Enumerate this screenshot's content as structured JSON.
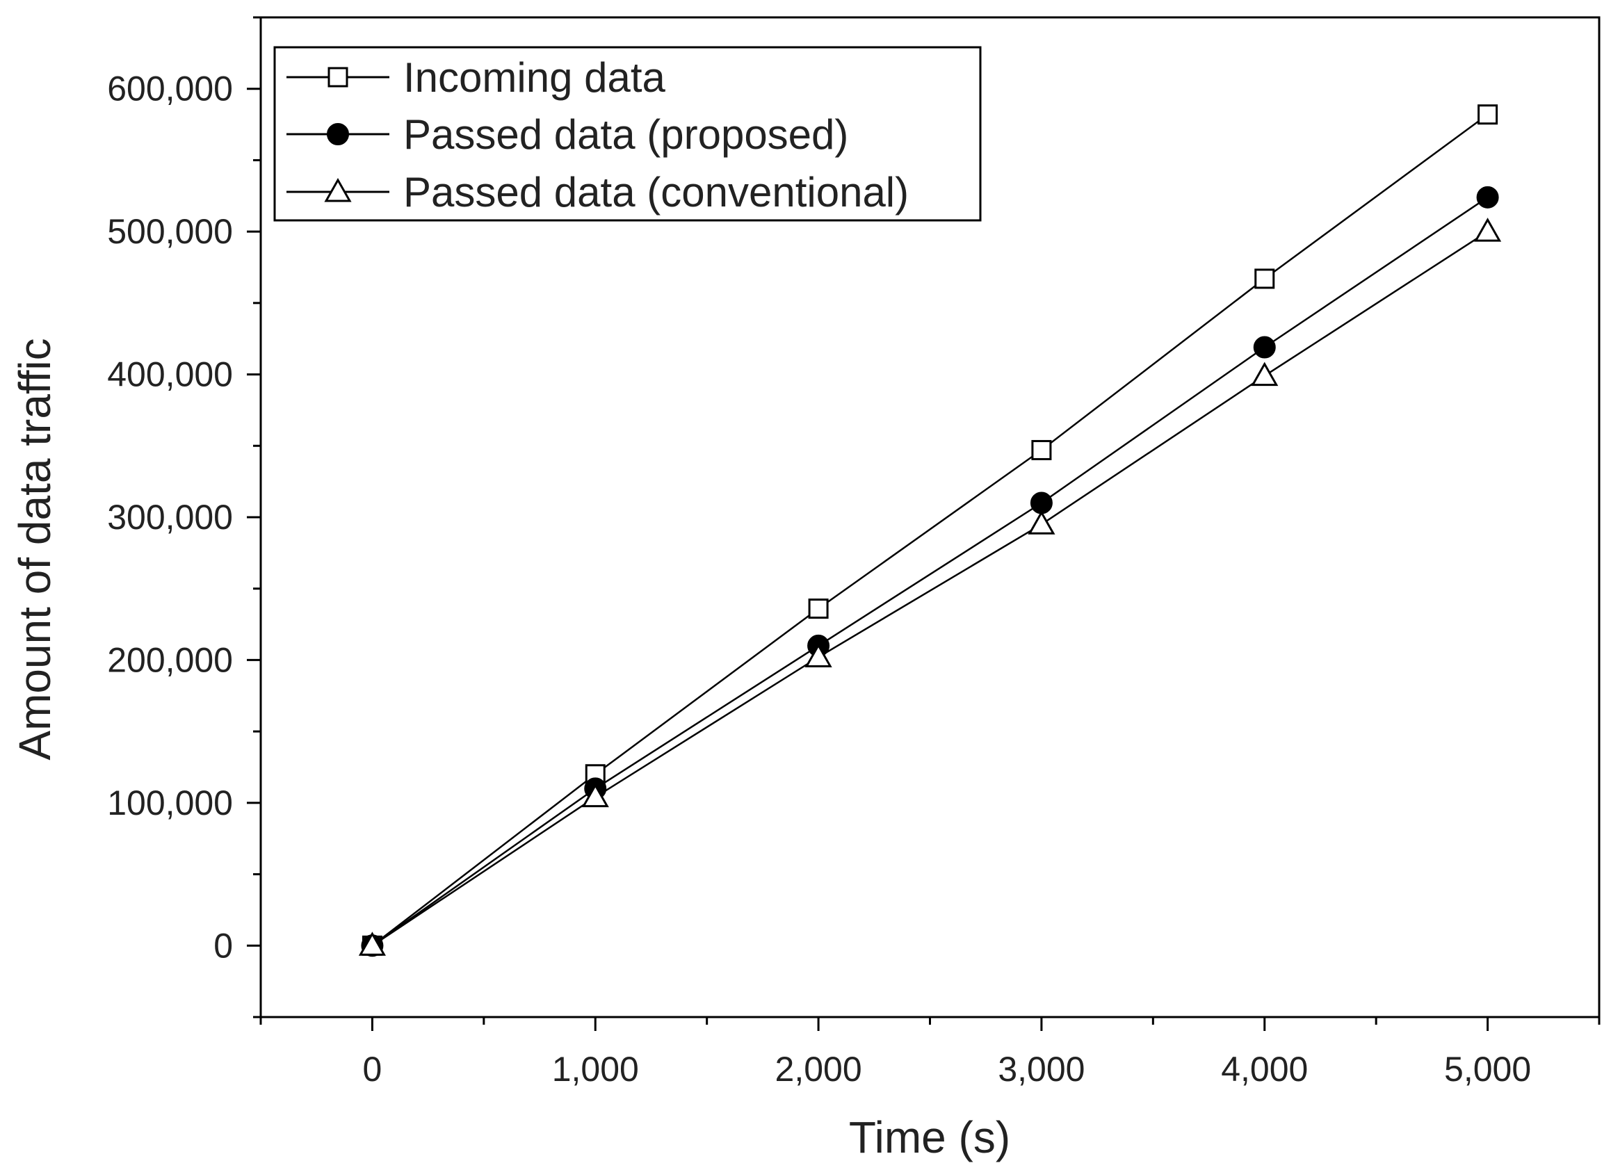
{
  "chart_data": {
    "type": "line",
    "title": "",
    "xlabel": "Time (s)",
    "ylabel": "Amount of data traffic",
    "xlim": [
      -500,
      5500
    ],
    "ylim": [
      -50000,
      650000
    ],
    "x_ticks": [
      0,
      1000,
      2000,
      3000,
      4000,
      5000
    ],
    "x_tick_labels": [
      "0",
      "1,000",
      "2,000",
      "3,000",
      "4,000",
      "5,000"
    ],
    "y_ticks": [
      0,
      100000,
      200000,
      300000,
      400000,
      500000,
      600000
    ],
    "y_tick_labels": [
      "0",
      "100,000",
      "200,000",
      "300,000",
      "400,000",
      "500,000",
      "600,000"
    ],
    "grid": false,
    "legend_position": "top-left",
    "x": [
      0,
      1000,
      2000,
      3000,
      4000,
      5000
    ],
    "series": [
      {
        "name": "Incoming data",
        "marker": "open-square",
        "values": [
          0,
          120000,
          236000,
          347000,
          467000,
          582000
        ]
      },
      {
        "name": "Passed data (proposed)",
        "marker": "filled-circle",
        "values": [
          0,
          110000,
          210000,
          310000,
          419000,
          524000
        ]
      },
      {
        "name": "Passed data (conventional)",
        "marker": "open-triangle",
        "values": [
          0,
          104000,
          202000,
          295000,
          399000,
          500000
        ]
      }
    ],
    "colors": {
      "line": "#000000",
      "axis": "#000000",
      "background": "#ffffff"
    }
  }
}
